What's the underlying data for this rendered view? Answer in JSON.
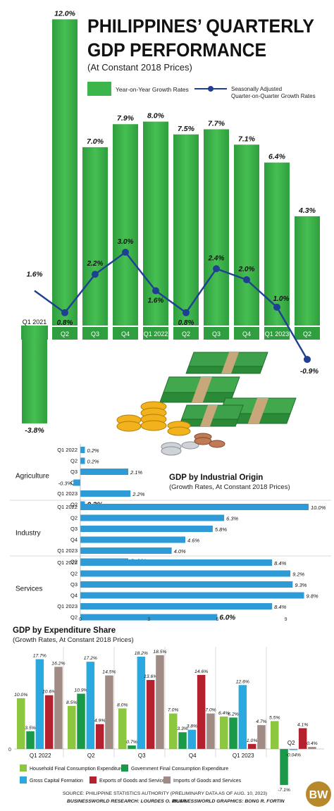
{
  "header": {
    "title_line1": "PHILIPPINES’ QUARTERLY",
    "title_line2": "GDP PERFORMANCE",
    "subtitle": "(At Constant 2018 Prices)"
  },
  "colors": {
    "green": "#3cb54a",
    "green_dark": "#1e8a2e",
    "navy": "#1f3f94",
    "blue": "#2e9bd6",
    "household": "#8dc63f",
    "government": "#1a9a48",
    "capital": "#29a9e0",
    "exports": "#b5202e",
    "imports": "#a08c84"
  },
  "chart_data": [
    {
      "type": "bar",
      "title": "",
      "categories": [
        "Q1 2021",
        "Q2",
        "Q3",
        "Q4",
        "Q1 2022",
        "Q2",
        "Q3",
        "Q4",
        "Q1 2023",
        "Q2"
      ],
      "series": [
        {
          "name": "Year-on-Year Growth Rates",
          "type": "bar",
          "values": [
            -3.8,
            12.0,
            7.0,
            7.9,
            8.0,
            7.5,
            7.7,
            7.1,
            6.4,
            4.3
          ],
          "labels": [
            "-3.8%",
            "12.0%",
            "7.0%",
            "7.9%",
            "8.0%",
            "7.5%",
            "7.7%",
            "7.1%",
            "6.4%",
            "4.3%"
          ]
        },
        {
          "name": "Seasonally Adjusted Quarter-on-Quarter Growth Rates",
          "type": "line",
          "values": [
            1.6,
            0.8,
            2.2,
            3.0,
            1.6,
            0.8,
            2.4,
            2.0,
            1.0,
            -0.9
          ],
          "labels": [
            "1.6%",
            "0.8%",
            "2.2%",
            "3.0%",
            "1.6%",
            "0.8%",
            "2.4%",
            "2.0%",
            "1.0%",
            "-0.9%"
          ]
        }
      ],
      "legend": [
        "Year-on-Year Growth Rates",
        "Seasonally Adjusted Quarter-on-Quarter Growth Rates"
      ]
    },
    {
      "type": "bar",
      "orientation": "horizontal",
      "title": "GDP by Industrial Origin",
      "subtitle": "(Growth Rates, At Constant 2018 Prices)",
      "xticks": [
        "0",
        "3",
        "6",
        "9"
      ],
      "xlim": [
        0,
        10.5
      ],
      "groups": [
        {
          "name": "Agriculture",
          "categories": [
            "Q1 2022",
            "Q2",
            "Q3",
            "Q4",
            "Q1 2023",
            "Q2"
          ],
          "values": [
            0.2,
            0.2,
            2.1,
            -0.3,
            2.2,
            0.2
          ],
          "labels": [
            "0.2%",
            "0.2%",
            "2.1%",
            "-0.3%",
            "2.2%",
            "0.2%"
          ]
        },
        {
          "name": "Industry",
          "categories": [
            "Q1 2022",
            "Q2",
            "Q3",
            "Q4",
            "Q1 2023",
            "Q2"
          ],
          "values": [
            10.0,
            6.3,
            5.8,
            4.6,
            4.0,
            2.1
          ],
          "labels": [
            "10.0%",
            "6.3%",
            "5.8%",
            "4.6%",
            "4.0%",
            "2.1%"
          ]
        },
        {
          "name": "Services",
          "categories": [
            "Q1 2022",
            "Q2",
            "Q3",
            "Q4",
            "Q1 2023",
            "Q2"
          ],
          "values": [
            8.4,
            9.2,
            9.3,
            9.8,
            8.4,
            6.0
          ],
          "labels": [
            "8.4%",
            "9.2%",
            "9.3%",
            "9.8%",
            "8.4%",
            "6.0%"
          ]
        }
      ]
    },
    {
      "type": "bar",
      "title": "GDP by Expenditure Share",
      "subtitle": "(Growth Rates, At Constant 2018 Prices)",
      "categories": [
        "Q1 2022",
        "Q2",
        "Q3",
        "Q4",
        "Q1 2023",
        "Q2"
      ],
      "zero_label": "0",
      "series": [
        {
          "name": "Household Final Consumption Expenditure",
          "values": [
            10.0,
            8.5,
            8.0,
            7.0,
            6.4,
            5.5
          ],
          "labels": [
            "10.0%",
            "8.5%",
            "8.0%",
            "7.0%",
            "6.4%",
            "5.5%"
          ]
        },
        {
          "name": "Government Final Consumption Expenditure",
          "values": [
            3.5,
            10.9,
            0.7,
            3.3,
            6.2,
            -7.1
          ],
          "labels": [
            "3.5%",
            "10.9%",
            "0.7%",
            "3.3%",
            "6.2%",
            "-7.1%"
          ]
        },
        {
          "name": "Gross Capital Formation",
          "values": [
            17.7,
            17.2,
            18.2,
            3.8,
            12.6,
            -0.04
          ],
          "labels": [
            "17.7%",
            "17.2%",
            "18.2%",
            "3.8%",
            "12.6%",
            "-0.04%"
          ]
        },
        {
          "name": "Exports of Goods and Services",
          "values": [
            10.6,
            4.9,
            13.6,
            14.6,
            1.0,
            4.1
          ],
          "labels": [
            "10.6%",
            "4.9%",
            "13.6%",
            "14.6%",
            "1.0%",
            "4.1%"
          ]
        },
        {
          "name": "Imports of Goods and Services",
          "values": [
            16.2,
            14.5,
            18.5,
            7.0,
            4.7,
            0.4
          ],
          "labels": [
            "16.2%",
            "14.5%",
            "18.5%",
            "7.0%",
            "4.7%",
            "0.4%"
          ]
        }
      ]
    }
  ],
  "footer": {
    "source": "SOURCE: PHILIPPINE STATISTICS AUTHORITY (PRELIMINARY DATA AS OF AUG. 10, 2023)",
    "research": "BUSINESSWORLD RESEARCH: LOURDES O. PILAR",
    "graphics": "BUSINESSWORLD GRAPHICS: BONG R. FORTIN",
    "logo": "BW"
  }
}
